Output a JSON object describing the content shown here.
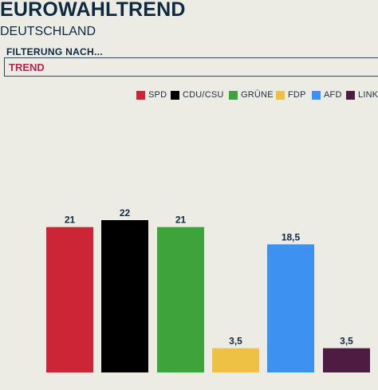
{
  "header": {
    "title": "EUROWAHLTREND",
    "subtitle": "DEUTSCHLAND"
  },
  "filter": {
    "label": "FILTERUNG NACH...",
    "value": "TREND"
  },
  "chart_data": {
    "type": "bar",
    "categories": [
      "SPD",
      "CDU/CSU",
      "GRÜNE",
      "FDP",
      "AFD",
      "LINKE"
    ],
    "values": [
      21,
      22,
      21,
      3.5,
      18.5,
      3.5
    ],
    "value_labels": [
      "21",
      "22",
      "21",
      "3,5",
      "18,5",
      "3,5"
    ],
    "colors": [
      "#cc2536",
      "#000000",
      "#3fa33c",
      "#eec043",
      "#3d91f1",
      "#4e1c42"
    ],
    "grid": false,
    "legend_position": "top-right"
  }
}
